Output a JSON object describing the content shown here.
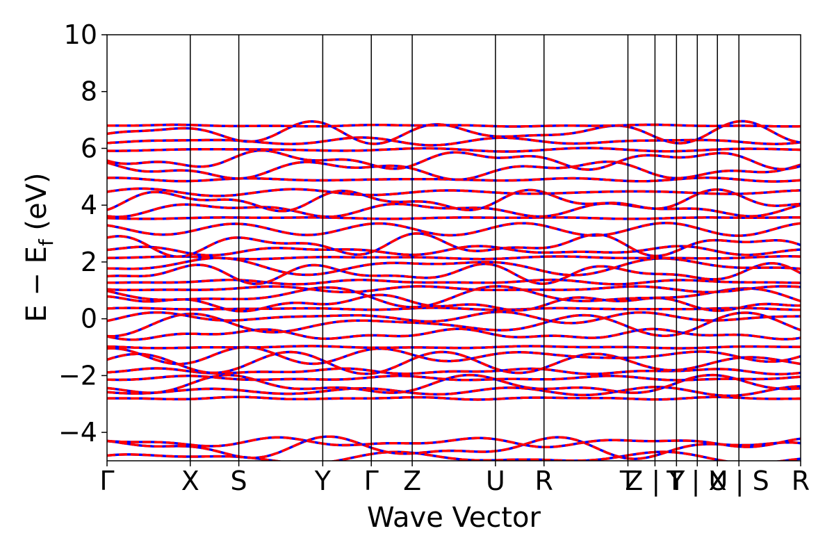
{
  "chart_data": {
    "type": "line",
    "xlabel": "Wave Vector",
    "ylabel": "E − E",
    "ylabel_sub": "f",
    "ylabel_unit": " (eV)",
    "ylim": [
      -5,
      10
    ],
    "yticks": [
      {
        "value": -4,
        "label": "−4"
      },
      {
        "value": -2,
        "label": "−2"
      },
      {
        "value": 0,
        "label": "0"
      },
      {
        "value": 2,
        "label": "2"
      },
      {
        "value": 4,
        "label": "4"
      },
      {
        "value": 6,
        "label": "6"
      },
      {
        "value": 8,
        "label": "8"
      },
      {
        "value": 10,
        "label": "10"
      }
    ],
    "k_path": [
      {
        "pos": 0.0,
        "label": "Γ"
      },
      {
        "pos": 0.12,
        "label": "X"
      },
      {
        "pos": 0.19,
        "label": "S"
      },
      {
        "pos": 0.311,
        "label": "Y"
      },
      {
        "pos": 0.381,
        "label": "Γ"
      },
      {
        "pos": 0.44,
        "label": "Z"
      },
      {
        "pos": 0.56,
        "label": "U"
      },
      {
        "pos": 0.63,
        "label": "R"
      },
      {
        "pos": 0.751,
        "label": "T"
      },
      {
        "pos": 0.79,
        "label": "Z | Y"
      },
      {
        "pos": 0.821,
        "label": ""
      },
      {
        "pos": 0.851,
        "label": "T | U"
      },
      {
        "pos": 0.88,
        "label": ""
      },
      {
        "pos": 0.911,
        "label": "X | S"
      },
      {
        "pos": 1.0,
        "label": "R"
      }
    ],
    "series_colors": {
      "first": "#0000ff",
      "second": "#ff0000"
    },
    "band_levels": [
      -4.9,
      -4.55,
      -4.35,
      -2.8,
      -2.55,
      -2.35,
      -2.1,
      -1.85,
      -1.55,
      -1.3,
      -1.0,
      -0.55,
      -0.2,
      0.05,
      0.35,
      0.55,
      0.8,
      1.05,
      1.3,
      1.6,
      1.85,
      2.15,
      2.4,
      2.6,
      3.15,
      3.55,
      3.85,
      4.15,
      4.45,
      4.9,
      5.25,
      5.6,
      5.95,
      6.25,
      6.55,
      6.8
    ]
  }
}
